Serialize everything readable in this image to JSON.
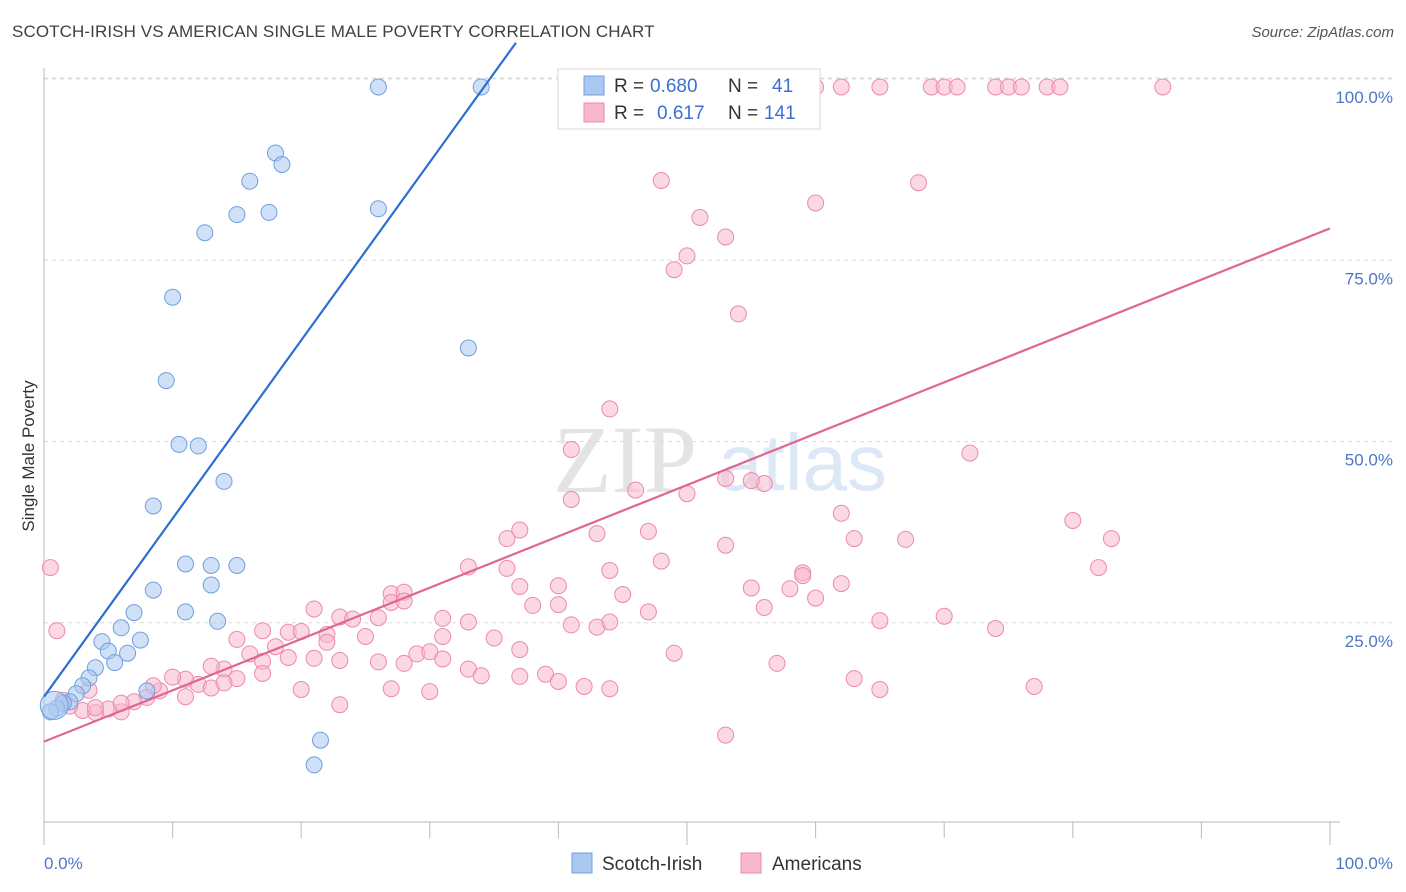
{
  "title": "SCOTCH-IRISH VS AMERICAN SINGLE MALE POVERTY CORRELATION CHART",
  "source": "Source: ZipAtlas.com",
  "watermark": {
    "zip": "ZIP",
    "atlas": "atlas"
  },
  "legend": {
    "r_label": "R =",
    "n_label": "N =",
    "scotch_irish": {
      "r": "0.680",
      "n": "41"
    },
    "americans": {
      "r": "0.617",
      "n": "141"
    }
  },
  "colors": {
    "scotch_irish_fill": "#aac8f0",
    "scotch_irish_stroke": "#6f9fe0",
    "scotch_irish_line": "#2c6fd1",
    "americans_fill": "#f7b8cc",
    "americans_stroke": "#ec8aaa",
    "americans_line": "#e0668f",
    "tick_text": "#4a78c8"
  },
  "chart_data": {
    "type": "scatter",
    "title": "SCOTCH-IRISH VS AMERICAN SINGLE MALE POVERTY CORRELATION CHART",
    "xlabel": "",
    "ylabel": "Single Male Poverty",
    "xlim": [
      0,
      100
    ],
    "ylim": [
      0,
      105
    ],
    "x_ticks": [
      "0.0%",
      "100.0%"
    ],
    "y_ticks": [
      {
        "value": 25,
        "label": "25.0%"
      },
      {
        "value": 50,
        "label": "50.0%"
      },
      {
        "value": 75,
        "label": "75.0%"
      },
      {
        "value": 100,
        "label": "100.0%"
      }
    ],
    "grid": true,
    "legend_position": "top-center",
    "series": [
      {
        "name": "Scotch-Irish",
        "r": 0.68,
        "n": 41,
        "trend": {
          "x0": 0,
          "y0": 14.8,
          "x1": 36.7,
          "y1": 105
        },
        "points": [
          [
            26,
            98.9
          ],
          [
            34,
            98.9
          ],
          [
            18,
            89.8
          ],
          [
            18.5,
            88.2
          ],
          [
            16,
            85.9
          ],
          [
            17.5,
            81.6
          ],
          [
            15,
            81.3
          ],
          [
            26,
            82.1
          ],
          [
            12.5,
            78.8
          ],
          [
            10,
            69.9
          ],
          [
            33,
            62.9
          ],
          [
            9.5,
            58.4
          ],
          [
            10.5,
            49.6
          ],
          [
            12,
            49.4
          ],
          [
            14,
            44.5
          ],
          [
            8.5,
            41.1
          ],
          [
            11,
            33.1
          ],
          [
            13,
            32.9
          ],
          [
            15,
            32.9
          ],
          [
            13,
            30.2
          ],
          [
            8.5,
            29.5
          ],
          [
            11,
            26.5
          ],
          [
            7,
            26.4
          ],
          [
            13.5,
            25.2
          ],
          [
            6,
            24.3
          ],
          [
            7.5,
            22.6
          ],
          [
            4.5,
            22.4
          ],
          [
            5,
            21.1
          ],
          [
            6.5,
            20.8
          ],
          [
            5.5,
            19.5
          ],
          [
            4,
            18.8
          ],
          [
            3.5,
            17.4
          ],
          [
            3,
            16.3
          ],
          [
            2.5,
            15.2
          ],
          [
            8,
            15.6
          ],
          [
            2,
            14.1
          ],
          [
            1.5,
            13.9
          ],
          [
            1,
            13.2
          ],
          [
            0.5,
            12.7
          ],
          [
            21.5,
            8.8
          ],
          [
            21,
            5.4
          ]
        ]
      },
      {
        "name": "Americans",
        "r": 0.617,
        "n": 141,
        "trend": {
          "x0": 0,
          "y0": 8.6,
          "x1": 100,
          "y1": 79.4
        },
        "points": [
          [
            48,
            98.9
          ],
          [
            49,
            98.9
          ],
          [
            53,
            98.9
          ],
          [
            55,
            98.9
          ],
          [
            57,
            98.9
          ],
          [
            60,
            98.9
          ],
          [
            62,
            98.9
          ],
          [
            65,
            98.9
          ],
          [
            69,
            98.9
          ],
          [
            70,
            98.9
          ],
          [
            71,
            98.9
          ],
          [
            74,
            98.9
          ],
          [
            75,
            98.9
          ],
          [
            76,
            98.9
          ],
          [
            78,
            98.9
          ],
          [
            79,
            98.9
          ],
          [
            87,
            98.9
          ],
          [
            48,
            86
          ],
          [
            68,
            85.7
          ],
          [
            60,
            82.9
          ],
          [
            51,
            80.9
          ],
          [
            53,
            78.2
          ],
          [
            50,
            75.6
          ],
          [
            49,
            73.7
          ],
          [
            54,
            67.6
          ],
          [
            44,
            54.5
          ],
          [
            41,
            48.9
          ],
          [
            72,
            48.4
          ],
          [
            46,
            43.3
          ],
          [
            53,
            44.9
          ],
          [
            56,
            44.2
          ],
          [
            55,
            44.6
          ],
          [
            50,
            42.8
          ],
          [
            62,
            40.1
          ],
          [
            41,
            42
          ],
          [
            37,
            37.8
          ],
          [
            36,
            36.6
          ],
          [
            43,
            37.3
          ],
          [
            47,
            37.6
          ],
          [
            53,
            35.7
          ],
          [
            63,
            36.6
          ],
          [
            67,
            36.5
          ],
          [
            80,
            39.1
          ],
          [
            83,
            36.6
          ],
          [
            0.5,
            32.6
          ],
          [
            33,
            32.7
          ],
          [
            36,
            32.5
          ],
          [
            44,
            32.2
          ],
          [
            48,
            33.5
          ],
          [
            59,
            31.9
          ],
          [
            59,
            31.5
          ],
          [
            82,
            32.6
          ],
          [
            27,
            29
          ],
          [
            28,
            29.2
          ],
          [
            37,
            30
          ],
          [
            40,
            30.1
          ],
          [
            45,
            28.9
          ],
          [
            55,
            29.8
          ],
          [
            58,
            29.7
          ],
          [
            62,
            30.4
          ],
          [
            21,
            26.9
          ],
          [
            23,
            25.8
          ],
          [
            24,
            25.5
          ],
          [
            26,
            25.7
          ],
          [
            27,
            27.8
          ],
          [
            28,
            28
          ],
          [
            31,
            25.6
          ],
          [
            33,
            25.1
          ],
          [
            38,
            27.4
          ],
          [
            40,
            27.5
          ],
          [
            41,
            24.7
          ],
          [
            43,
            24.4
          ],
          [
            44,
            25.1
          ],
          [
            47,
            26.5
          ],
          [
            56,
            27.1
          ],
          [
            60,
            28.4
          ],
          [
            65,
            25.3
          ],
          [
            70,
            25.9
          ],
          [
            74,
            24.2
          ],
          [
            1,
            23.9
          ],
          [
            15,
            22.7
          ],
          [
            17,
            23.9
          ],
          [
            19,
            23.7
          ],
          [
            20,
            23.8
          ],
          [
            22,
            23.4
          ],
          [
            25,
            23.1
          ],
          [
            29,
            20.7
          ],
          [
            31,
            23.1
          ],
          [
            35,
            22.9
          ],
          [
            37,
            21.3
          ],
          [
            49,
            20.8
          ],
          [
            18,
            21.7
          ],
          [
            16,
            20.7
          ],
          [
            17,
            19.7
          ],
          [
            19,
            20.2
          ],
          [
            21,
            20.1
          ],
          [
            22,
            22.3
          ],
          [
            23,
            19.8
          ],
          [
            26,
            19.6
          ],
          [
            28,
            19.4
          ],
          [
            30,
            21
          ],
          [
            31,
            20
          ],
          [
            33,
            18.6
          ],
          [
            34,
            17.7
          ],
          [
            37,
            17.6
          ],
          [
            39,
            17.9
          ],
          [
            40,
            16.9
          ],
          [
            42,
            16.2
          ],
          [
            44,
            15.9
          ],
          [
            57,
            19.4
          ],
          [
            63,
            17.3
          ],
          [
            65,
            15.8
          ],
          [
            77,
            16.2
          ],
          [
            14,
            18.6
          ],
          [
            13,
            19
          ],
          [
            15,
            17.3
          ],
          [
            12,
            16.5
          ],
          [
            11,
            17.2
          ],
          [
            9,
            15.6
          ],
          [
            10,
            17.5
          ],
          [
            8,
            14.7
          ],
          [
            7,
            14.1
          ],
          [
            6,
            12.7
          ],
          [
            5,
            13.1
          ],
          [
            4,
            12.6
          ],
          [
            3,
            12.9
          ],
          [
            2,
            13.5
          ],
          [
            1.5,
            14.3
          ],
          [
            3.5,
            15.7
          ],
          [
            8.5,
            16.3
          ],
          [
            11,
            14.8
          ],
          [
            13,
            16
          ],
          [
            14,
            16.7
          ],
          [
            17,
            18
          ],
          [
            20,
            15.8
          ],
          [
            27,
            15.9
          ],
          [
            23,
            13.7
          ],
          [
            30,
            15.5
          ],
          [
            53,
            9.5
          ],
          [
            4,
            13.3
          ],
          [
            6,
            13.9
          ]
        ]
      }
    ]
  },
  "bottom_legend": {
    "scotch_irish": "Scotch-Irish",
    "americans": "Americans"
  }
}
